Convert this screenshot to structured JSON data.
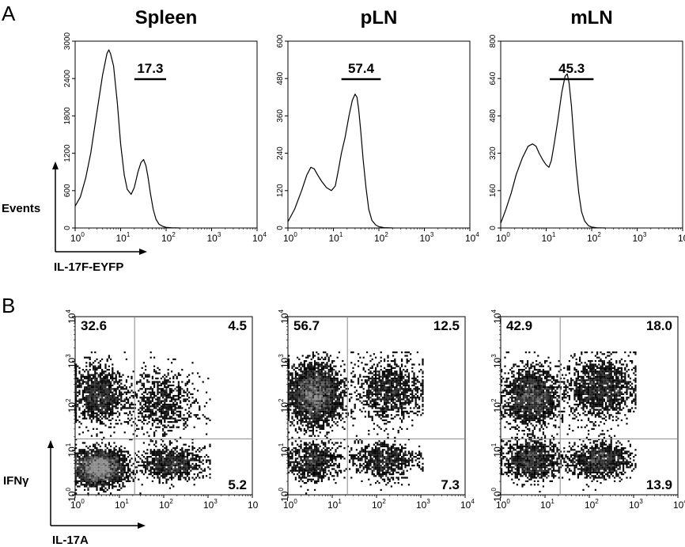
{
  "panels": {
    "a_letter": "A",
    "b_letter": "B"
  },
  "axis_titles": {
    "histogram_y": "Events",
    "histogram_x": "IL-17F-EYFP",
    "dotplot_y": "IFNγ",
    "dotplot_x": "IL-17A"
  },
  "chart_data": [
    {
      "type": "line",
      "title": "Spleen",
      "xlabel": "IL-17F-EYFP",
      "ylabel": "Events",
      "x_scale": "log",
      "xlim": [
        1,
        10000
      ],
      "ylim": [
        0,
        3000
      ],
      "y_ticks": [
        "0",
        "600",
        "1200",
        "1800",
        "2400",
        "3000"
      ],
      "gate": {
        "range": [
          20,
          100
        ],
        "percent": "17.3"
      },
      "series": [
        {
          "x": [
            1,
            1.3,
            1.7,
            2.2,
            3,
            4,
            5,
            5.5,
            6,
            7,
            8.5,
            10,
            12,
            14,
            17,
            20,
            24,
            28,
            32,
            36,
            40,
            45,
            52,
            60,
            70,
            85,
            100,
            130,
            200
          ],
          "y": [
            350,
            500,
            800,
            1200,
            1850,
            2450,
            2800,
            2860,
            2800,
            2600,
            2000,
            1350,
            850,
            620,
            540,
            650,
            900,
            1050,
            1100,
            1000,
            820,
            560,
            300,
            140,
            60,
            25,
            10,
            4,
            0
          ]
        }
      ]
    },
    {
      "type": "line",
      "title": "pLN",
      "xlabel": "",
      "ylabel": "",
      "x_scale": "log",
      "xlim": [
        1,
        10000
      ],
      "ylim": [
        0,
        600
      ],
      "y_ticks": [
        "0",
        "120",
        "240",
        "360",
        "480",
        "600"
      ],
      "gate": {
        "range": [
          15,
          110
        ],
        "percent": "57.4"
      },
      "series": [
        {
          "x": [
            1,
            1.4,
            2,
            2.6,
            3.2,
            3.8,
            4.5,
            5.5,
            7,
            9,
            11,
            13,
            15,
            18,
            22,
            26,
            30,
            33,
            36,
            40,
            45,
            52,
            60,
            70,
            85,
            100,
            130,
            200
          ],
          "y": [
            20,
            60,
            120,
            170,
            195,
            190,
            170,
            150,
            130,
            120,
            135,
            190,
            240,
            290,
            360,
            410,
            430,
            420,
            380,
            310,
            220,
            130,
            60,
            25,
            10,
            4,
            1,
            0
          ]
        }
      ]
    },
    {
      "type": "line",
      "title": "mLN",
      "xlabel": "",
      "ylabel": "",
      "x_scale": "log",
      "xlim": [
        1,
        10000
      ],
      "ylim": [
        0,
        800
      ],
      "y_ticks": [
        "0",
        "160",
        "320",
        "480",
        "640",
        "800"
      ],
      "gate": {
        "range": [
          12,
          110
        ],
        "percent": "45.3"
      },
      "series": [
        {
          "x": [
            1,
            1.3,
            1.7,
            2.2,
            3,
            4,
            5,
            6,
            7,
            8.5,
            10,
            11.5,
            13,
            15,
            18,
            22,
            26,
            29,
            32,
            36,
            40,
            45,
            52,
            60,
            70,
            85,
            100,
            130,
            200
          ],
          "y": [
            20,
            80,
            150,
            230,
            300,
            350,
            360,
            350,
            320,
            290,
            270,
            260,
            290,
            360,
            460,
            580,
            650,
            660,
            620,
            520,
            400,
            270,
            150,
            70,
            30,
            10,
            4,
            1,
            0
          ]
        }
      ]
    },
    {
      "type": "scatter",
      "title": "",
      "xlabel": "IL-17A",
      "ylabel": "IFNγ",
      "x_scale": "log",
      "y_scale": "log",
      "xlim": [
        1,
        10000
      ],
      "ylim": [
        1,
        10000
      ],
      "quadrant_gate": {
        "x": 22,
        "y": 18
      },
      "quadrants": {
        "top_left": "32.6",
        "top_right": "4.5",
        "bottom_right": "5.2"
      },
      "x_tick_exponents": [
        "0",
        "1",
        "2",
        "3",
        ""
      ],
      "clusters": [
        {
          "x": 3.5,
          "y": 4,
          "spread_x": 0.28,
          "spread_y": 0.2,
          "weight": 0.48
        },
        {
          "x": 3.5,
          "y": 180,
          "spread_x": 0.28,
          "spread_y": 0.32,
          "weight": 0.22
        },
        {
          "x": 150,
          "y": 5,
          "spread_x": 0.35,
          "spread_y": 0.18,
          "weight": 0.16
        },
        {
          "x": 90,
          "y": 120,
          "spread_x": 0.4,
          "spread_y": 0.38,
          "weight": 0.14
        }
      ]
    },
    {
      "type": "scatter",
      "title": "",
      "xlabel": "",
      "ylabel": "",
      "x_scale": "log",
      "y_scale": "log",
      "xlim": [
        1,
        10000
      ],
      "ylim": [
        1,
        10000
      ],
      "quadrant_gate": {
        "x": 22,
        "y": 18
      },
      "quadrants": {
        "top_left": "56.7",
        "top_right": "12.5",
        "bottom_right": "7.3"
      },
      "x_tick_exponents": [
        "0",
        "1",
        "2",
        "3",
        "4"
      ],
      "clusters": [
        {
          "x": 4,
          "y": 180,
          "spread_x": 0.3,
          "spread_y": 0.34,
          "weight": 0.52
        },
        {
          "x": 4,
          "y": 6,
          "spread_x": 0.3,
          "spread_y": 0.22,
          "weight": 0.14
        },
        {
          "x": 200,
          "y": 220,
          "spread_x": 0.38,
          "spread_y": 0.34,
          "weight": 0.2
        },
        {
          "x": 150,
          "y": 6,
          "spread_x": 0.35,
          "spread_y": 0.2,
          "weight": 0.14
        }
      ]
    },
    {
      "type": "scatter",
      "title": "",
      "xlabel": "",
      "ylabel": "",
      "x_scale": "log",
      "y_scale": "log",
      "xlim": [
        1,
        10000
      ],
      "ylim": [
        1,
        10000
      ],
      "quadrant_gate": {
        "x": 22,
        "y": 18
      },
      "quadrants": {
        "top_left": "42.9",
        "top_right": "18.0",
        "bottom_right": "13.9"
      },
      "x_tick_exponents": [
        "0",
        "1",
        "2",
        "3",
        "4"
      ],
      "clusters": [
        {
          "x": 5,
          "y": 160,
          "spread_x": 0.3,
          "spread_y": 0.32,
          "weight": 0.34
        },
        {
          "x": 5,
          "y": 6,
          "spread_x": 0.3,
          "spread_y": 0.22,
          "weight": 0.2
        },
        {
          "x": 180,
          "y": 250,
          "spread_x": 0.38,
          "spread_y": 0.34,
          "weight": 0.26
        },
        {
          "x": 170,
          "y": 6,
          "spread_x": 0.35,
          "spread_y": 0.2,
          "weight": 0.2
        }
      ]
    }
  ]
}
